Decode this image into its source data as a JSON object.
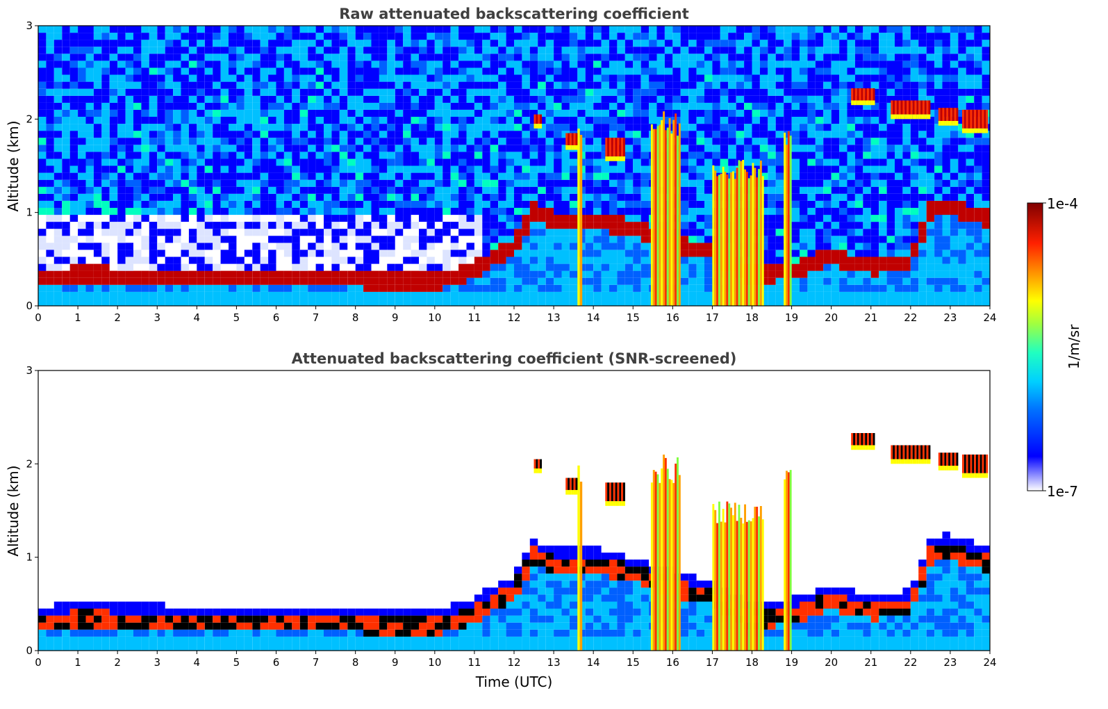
{
  "chart_data": [
    {
      "type": "heatmap",
      "title": "Raw attenuated backscattering coefficient",
      "xlabel": "",
      "ylabel": "Altitude (km)",
      "xlim": [
        0,
        24
      ],
      "ylim": [
        0,
        3
      ],
      "x_ticks": [
        "0",
        "1",
        "2",
        "3",
        "4",
        "5",
        "6",
        "7",
        "8",
        "9",
        "10",
        "11",
        "12",
        "13",
        "14",
        "15",
        "16",
        "17",
        "18",
        "19",
        "20",
        "21",
        "22",
        "23",
        "24"
      ],
      "y_ticks": [
        "0",
        "1",
        "2",
        "3"
      ],
      "screened": false,
      "boundary_layer_top_km": [
        [
          0,
          0.32
        ],
        [
          1,
          0.36
        ],
        [
          2,
          0.35
        ],
        [
          3,
          0.34
        ],
        [
          4,
          0.33
        ],
        [
          5,
          0.31
        ],
        [
          6,
          0.33
        ],
        [
          7,
          0.32
        ],
        [
          8,
          0.31
        ],
        [
          9,
          0.3
        ],
        [
          10,
          0.28
        ],
        [
          11,
          0.4
        ],
        [
          11.5,
          0.55
        ],
        [
          12,
          0.65
        ],
        [
          12.5,
          1.05
        ],
        [
          13,
          0.95
        ],
        [
          14,
          0.95
        ],
        [
          15,
          0.85
        ],
        [
          16,
          0.7
        ],
        [
          17,
          0.6
        ],
        [
          18,
          0.35
        ],
        [
          19,
          0.4
        ],
        [
          20,
          0.55
        ],
        [
          21,
          0.45
        ],
        [
          22,
          0.5
        ],
        [
          22.5,
          1.05
        ],
        [
          23,
          1.1
        ],
        [
          24,
          0.95
        ]
      ],
      "cloud_layers": [
        {
          "start": 12.5,
          "end": 12.7,
          "base_km": 1.95,
          "top_km": 2.05
        },
        {
          "start": 13.3,
          "end": 13.6,
          "base_km": 1.72,
          "top_km": 1.85
        },
        {
          "start": 14.3,
          "end": 14.8,
          "base_km": 1.6,
          "top_km": 1.8
        },
        {
          "start": 20.5,
          "end": 21.1,
          "base_km": 2.2,
          "top_km": 2.33
        },
        {
          "start": 21.5,
          "end": 22.5,
          "base_km": 2.05,
          "top_km": 2.2
        },
        {
          "start": 22.7,
          "end": 23.2,
          "base_km": 1.98,
          "top_km": 2.12
        },
        {
          "start": 23.3,
          "end": 23.95,
          "base_km": 1.9,
          "top_km": 2.1
        }
      ],
      "precip_shafts": [
        {
          "start": 13.6,
          "end": 13.72,
          "top_km": 2.05
        },
        {
          "start": 15.45,
          "end": 16.2,
          "top_km": 2.1
        },
        {
          "start": 17.0,
          "end": 18.3,
          "top_km": 1.6
        },
        {
          "start": 18.8,
          "end": 19.0,
          "top_km": 2.0
        }
      ]
    },
    {
      "type": "heatmap",
      "title": "Attenuated backscattering coefficient (SNR-screened)",
      "xlabel": "Time (UTC)",
      "ylabel": "Altitude (km)",
      "xlim": [
        0,
        24
      ],
      "ylim": [
        0,
        3
      ],
      "x_ticks": [
        "0",
        "1",
        "2",
        "3",
        "4",
        "5",
        "6",
        "7",
        "8",
        "9",
        "10",
        "11",
        "12",
        "13",
        "14",
        "15",
        "16",
        "17",
        "18",
        "19",
        "20",
        "21",
        "22",
        "23",
        "24"
      ],
      "y_ticks": [
        "0",
        "1",
        "2",
        "3"
      ],
      "screened": true
    }
  ],
  "colorbar": {
    "max_label": "1e-4",
    "min_label": "1e-7",
    "unit_label": "1/m/sr",
    "colors": [
      "#ffffff",
      "#8080ff",
      "#0000ff",
      "#0060ff",
      "#00c0ff",
      "#00ffc0",
      "#80ff40",
      "#ffff00",
      "#ffa000",
      "#ff3000",
      "#c00000",
      "#800000"
    ]
  }
}
